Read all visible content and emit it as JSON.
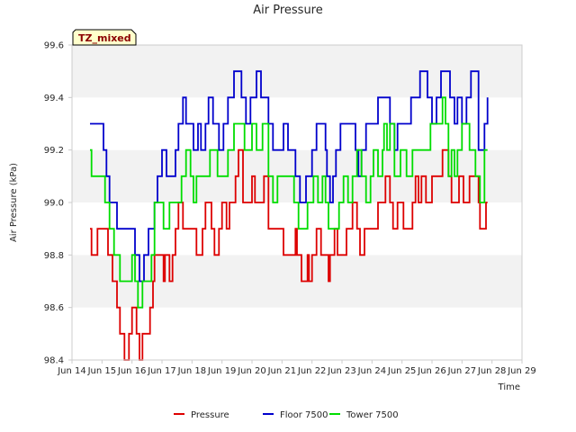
{
  "chart_data": {
    "type": "line",
    "title": "Air Pressure",
    "xlabel": "Time",
    "ylabel": "Air Pressure (kPa)",
    "ylim": [
      98.4,
      99.6
    ],
    "xlim": [
      14,
      29
    ],
    "yticks": [
      98.4,
      98.6,
      98.8,
      99.0,
      99.2,
      99.4,
      99.6
    ],
    "ytick_labels": [
      "98.4",
      "98.6",
      "98.8",
      "99.0",
      "99.2",
      "99.4",
      "99.6"
    ],
    "xticks": [
      14,
      15,
      16,
      17,
      18,
      19,
      20,
      21,
      22,
      23,
      24,
      25,
      26,
      27,
      28,
      29
    ],
    "xtick_labels": [
      "Jun 14",
      "Jun 15",
      "Jun 16",
      "Jun 17",
      "Jun 18",
      "Jun 19",
      "Jun 20",
      "Jun 21",
      "Jun 22",
      "Jun 23",
      "Jun 24",
      "Jun 25",
      "Jun 26",
      "Jun 27",
      "Jun 28",
      "Jun 29"
    ],
    "badge": "TZ_mixed",
    "grid": "horizontal bands",
    "legend_position": "bottom-center",
    "series": [
      {
        "name": "Pressure",
        "color": "#dd0000",
        "points": [
          [
            14.6,
            98.9
          ],
          [
            14.65,
            98.8
          ],
          [
            14.85,
            98.9
          ],
          [
            15.2,
            98.8
          ],
          [
            15.35,
            98.7
          ],
          [
            15.5,
            98.6
          ],
          [
            15.6,
            98.5
          ],
          [
            15.75,
            98.4
          ],
          [
            15.9,
            98.5
          ],
          [
            16.0,
            98.6
          ],
          [
            16.15,
            98.5
          ],
          [
            16.25,
            98.4
          ],
          [
            16.35,
            98.5
          ],
          [
            16.6,
            98.6
          ],
          [
            16.7,
            98.7
          ],
          [
            16.75,
            98.8
          ],
          [
            17.05,
            98.7
          ],
          [
            17.1,
            98.8
          ],
          [
            17.25,
            98.7
          ],
          [
            17.35,
            98.8
          ],
          [
            17.45,
            98.9
          ],
          [
            17.55,
            99.0
          ],
          [
            17.7,
            98.9
          ],
          [
            17.8,
            98.9
          ],
          [
            18.05,
            98.9
          ],
          [
            18.15,
            98.8
          ],
          [
            18.35,
            98.9
          ],
          [
            18.45,
            99.0
          ],
          [
            18.65,
            98.9
          ],
          [
            18.75,
            98.8
          ],
          [
            18.9,
            98.9
          ],
          [
            19.0,
            99.0
          ],
          [
            19.15,
            98.9
          ],
          [
            19.25,
            99.0
          ],
          [
            19.45,
            99.1
          ],
          [
            19.55,
            99.2
          ],
          [
            19.7,
            99.0
          ],
          [
            20.0,
            99.1
          ],
          [
            20.1,
            99.0
          ],
          [
            20.4,
            99.1
          ],
          [
            20.55,
            98.9
          ],
          [
            20.7,
            98.9
          ],
          [
            20.95,
            98.9
          ],
          [
            21.05,
            98.8
          ],
          [
            21.3,
            98.8
          ],
          [
            21.45,
            98.9
          ],
          [
            21.5,
            98.8
          ],
          [
            21.65,
            98.7
          ],
          [
            21.85,
            98.8
          ],
          [
            21.9,
            98.7
          ],
          [
            22.0,
            98.8
          ],
          [
            22.15,
            98.9
          ],
          [
            22.3,
            98.8
          ],
          [
            22.45,
            98.8
          ],
          [
            22.55,
            98.7
          ],
          [
            22.6,
            98.8
          ],
          [
            22.75,
            98.9
          ],
          [
            22.85,
            98.8
          ],
          [
            23.05,
            98.8
          ],
          [
            23.15,
            98.9
          ],
          [
            23.35,
            99.0
          ],
          [
            23.5,
            98.9
          ],
          [
            23.6,
            98.8
          ],
          [
            23.75,
            98.9
          ],
          [
            24.05,
            98.9
          ],
          [
            24.2,
            99.0
          ],
          [
            24.45,
            99.1
          ],
          [
            24.6,
            99.0
          ],
          [
            24.7,
            98.9
          ],
          [
            24.85,
            99.0
          ],
          [
            25.05,
            98.9
          ],
          [
            25.2,
            98.9
          ],
          [
            25.35,
            99.0
          ],
          [
            25.45,
            99.1
          ],
          [
            25.55,
            99.0
          ],
          [
            25.65,
            99.1
          ],
          [
            25.8,
            99.0
          ],
          [
            26.0,
            99.1
          ],
          [
            26.35,
            99.2
          ],
          [
            26.55,
            99.1
          ],
          [
            26.65,
            99.0
          ],
          [
            26.9,
            99.1
          ],
          [
            27.05,
            99.0
          ],
          [
            27.25,
            99.1
          ],
          [
            27.5,
            99.1
          ],
          [
            27.55,
            99.0
          ],
          [
            27.6,
            98.9
          ],
          [
            27.8,
            99.0
          ],
          [
            27.85,
            99.0
          ]
        ]
      },
      {
        "name": "Floor 7500",
        "color": "#0000cc",
        "points": [
          [
            14.6,
            99.3
          ],
          [
            15.05,
            99.2
          ],
          [
            15.15,
            99.1
          ],
          [
            15.25,
            99.0
          ],
          [
            15.5,
            98.9
          ],
          [
            16.1,
            98.8
          ],
          [
            16.25,
            98.7
          ],
          [
            16.4,
            98.8
          ],
          [
            16.55,
            98.9
          ],
          [
            16.75,
            99.0
          ],
          [
            16.85,
            99.1
          ],
          [
            17.0,
            99.2
          ],
          [
            17.15,
            99.1
          ],
          [
            17.45,
            99.2
          ],
          [
            17.55,
            99.3
          ],
          [
            17.7,
            99.4
          ],
          [
            17.8,
            99.3
          ],
          [
            18.05,
            99.2
          ],
          [
            18.2,
            99.3
          ],
          [
            18.3,
            99.2
          ],
          [
            18.45,
            99.3
          ],
          [
            18.55,
            99.4
          ],
          [
            18.7,
            99.3
          ],
          [
            18.9,
            99.2
          ],
          [
            19.05,
            99.3
          ],
          [
            19.2,
            99.4
          ],
          [
            19.4,
            99.5
          ],
          [
            19.65,
            99.4
          ],
          [
            19.8,
            99.3
          ],
          [
            19.95,
            99.4
          ],
          [
            20.15,
            99.5
          ],
          [
            20.3,
            99.4
          ],
          [
            20.55,
            99.3
          ],
          [
            20.7,
            99.2
          ],
          [
            21.05,
            99.3
          ],
          [
            21.2,
            99.2
          ],
          [
            21.45,
            99.1
          ],
          [
            21.6,
            99.0
          ],
          [
            21.8,
            99.1
          ],
          [
            22.0,
            99.2
          ],
          [
            22.15,
            99.3
          ],
          [
            22.45,
            99.2
          ],
          [
            22.5,
            99.1
          ],
          [
            22.6,
            99.0
          ],
          [
            22.7,
            99.1
          ],
          [
            22.8,
            99.2
          ],
          [
            22.95,
            99.3
          ],
          [
            23.25,
            99.3
          ],
          [
            23.45,
            99.2
          ],
          [
            23.55,
            99.1
          ],
          [
            23.65,
            99.2
          ],
          [
            23.8,
            99.3
          ],
          [
            24.05,
            99.3
          ],
          [
            24.2,
            99.4
          ],
          [
            24.6,
            99.3
          ],
          [
            24.75,
            99.2
          ],
          [
            24.85,
            99.3
          ],
          [
            25.05,
            99.3
          ],
          [
            25.3,
            99.4
          ],
          [
            25.6,
            99.5
          ],
          [
            25.85,
            99.4
          ],
          [
            26.0,
            99.3
          ],
          [
            26.15,
            99.4
          ],
          [
            26.3,
            99.5
          ],
          [
            26.6,
            99.4
          ],
          [
            26.75,
            99.3
          ],
          [
            26.85,
            99.4
          ],
          [
            27.0,
            99.3
          ],
          [
            27.15,
            99.4
          ],
          [
            27.3,
            99.5
          ],
          [
            27.55,
            99.2
          ],
          [
            27.75,
            99.3
          ],
          [
            27.85,
            99.4
          ]
        ]
      },
      {
        "name": "Tower 7500",
        "color": "#00dd00",
        "points": [
          [
            14.6,
            99.2
          ],
          [
            14.65,
            99.1
          ],
          [
            15.1,
            99.0
          ],
          [
            15.25,
            98.9
          ],
          [
            15.4,
            98.8
          ],
          [
            15.6,
            98.7
          ],
          [
            16.0,
            98.8
          ],
          [
            16.1,
            98.7
          ],
          [
            16.2,
            98.6
          ],
          [
            16.35,
            98.7
          ],
          [
            16.65,
            98.8
          ],
          [
            16.75,
            99.0
          ],
          [
            17.05,
            98.9
          ],
          [
            17.25,
            99.0
          ],
          [
            17.65,
            99.1
          ],
          [
            17.8,
            99.2
          ],
          [
            17.95,
            99.1
          ],
          [
            18.05,
            99.0
          ],
          [
            18.15,
            99.1
          ],
          [
            18.6,
            99.2
          ],
          [
            18.85,
            99.1
          ],
          [
            19.2,
            99.2
          ],
          [
            19.4,
            99.3
          ],
          [
            19.75,
            99.2
          ],
          [
            20.0,
            99.3
          ],
          [
            20.15,
            99.2
          ],
          [
            20.35,
            99.3
          ],
          [
            20.55,
            99.1
          ],
          [
            20.7,
            99.0
          ],
          [
            20.85,
            99.1
          ],
          [
            21.1,
            99.1
          ],
          [
            21.4,
            99.0
          ],
          [
            21.55,
            98.9
          ],
          [
            21.85,
            99.0
          ],
          [
            22.05,
            99.1
          ],
          [
            22.2,
            99.0
          ],
          [
            22.35,
            99.1
          ],
          [
            22.45,
            99.0
          ],
          [
            22.55,
            98.9
          ],
          [
            22.7,
            98.9
          ],
          [
            22.9,
            99.0
          ],
          [
            23.05,
            99.1
          ],
          [
            23.2,
            99.0
          ],
          [
            23.35,
            99.1
          ],
          [
            23.5,
            99.2
          ],
          [
            23.65,
            99.1
          ],
          [
            23.8,
            99.0
          ],
          [
            23.95,
            99.1
          ],
          [
            24.05,
            99.2
          ],
          [
            24.2,
            99.1
          ],
          [
            24.35,
            99.2
          ],
          [
            24.4,
            99.3
          ],
          [
            24.5,
            99.2
          ],
          [
            24.6,
            99.3
          ],
          [
            24.75,
            99.1
          ],
          [
            24.95,
            99.2
          ],
          [
            25.15,
            99.1
          ],
          [
            25.35,
            99.2
          ],
          [
            25.95,
            99.3
          ],
          [
            26.35,
            99.4
          ],
          [
            26.45,
            99.3
          ],
          [
            26.55,
            99.1
          ],
          [
            26.65,
            99.2
          ],
          [
            26.75,
            99.1
          ],
          [
            26.85,
            99.2
          ],
          [
            27.0,
            99.3
          ],
          [
            27.25,
            99.2
          ],
          [
            27.45,
            99.1
          ],
          [
            27.6,
            99.0
          ],
          [
            27.75,
            99.2
          ],
          [
            27.85,
            99.2
          ]
        ]
      }
    ]
  }
}
